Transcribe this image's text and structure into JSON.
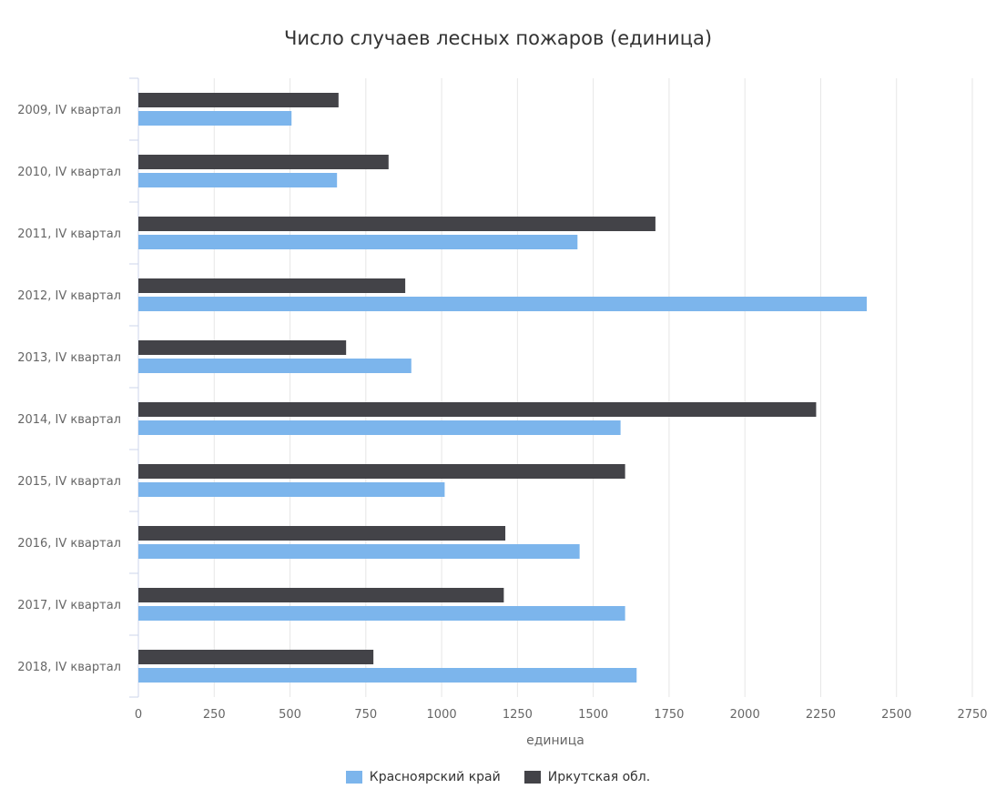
{
  "chart_data": {
    "type": "bar",
    "orientation": "horizontal",
    "title": "Число случаев лесных пожаров (единица)",
    "xlabel": "единица",
    "ylabel": "",
    "xlim": [
      0,
      2750
    ],
    "ticks": [
      "0",
      "250",
      "500",
      "750",
      "1000",
      "1250",
      "1500",
      "1750",
      "2000",
      "2250",
      "2500",
      "2750"
    ],
    "categories": [
      "2009, IV квартал",
      "2010, IV квартал",
      "2011, IV квартал",
      "2012, IV квартал",
      "2013, IV квартал",
      "2014, IV квартал",
      "2015, IV квартал",
      "2016, IV квартал",
      "2017, IV квартал",
      "2018, IV квартал"
    ],
    "series": [
      {
        "name": "Иркутская обл.",
        "color": "#434348",
        "values": [
          660,
          825,
          1705,
          880,
          685,
          2235,
          1605,
          1210,
          1205,
          775
        ]
      },
      {
        "name": "Красноярский край",
        "color": "#7cb5ec",
        "values": [
          505,
          655,
          1448,
          2402,
          900,
          1590,
          1010,
          1455,
          1605,
          1643
        ]
      }
    ],
    "grid": true,
    "legend_position": "bottom-center",
    "legend_order": [
      "Красноярский край",
      "Иркутская обл."
    ]
  }
}
